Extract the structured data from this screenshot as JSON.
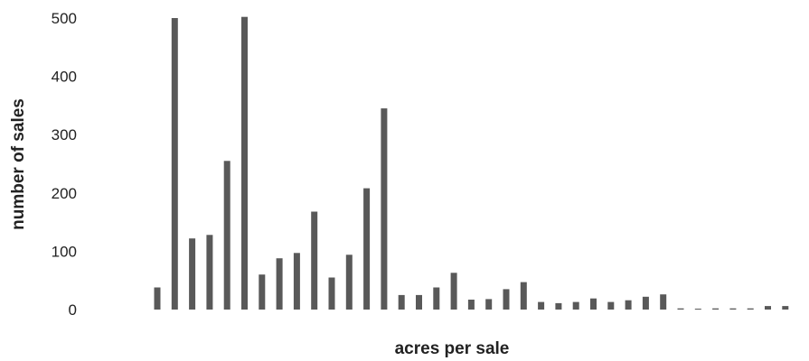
{
  "chart_data": {
    "type": "bar",
    "xlabel": "acres per sale",
    "ylabel": "number of sales",
    "ylim": [
      0,
      500
    ],
    "yticks": [
      0,
      100,
      200,
      300,
      400,
      500
    ],
    "grid": false,
    "legend": "none",
    "bar_color": "#595959",
    "values": [
      38,
      500,
      122,
      128,
      255,
      502,
      60,
      88,
      97,
      168,
      55,
      94,
      208,
      345,
      25,
      25,
      38,
      63,
      17,
      18,
      35,
      47,
      13,
      11,
      13,
      19,
      13,
      16,
      22,
      26,
      2,
      0,
      2,
      2,
      2,
      6,
      6
    ]
  }
}
